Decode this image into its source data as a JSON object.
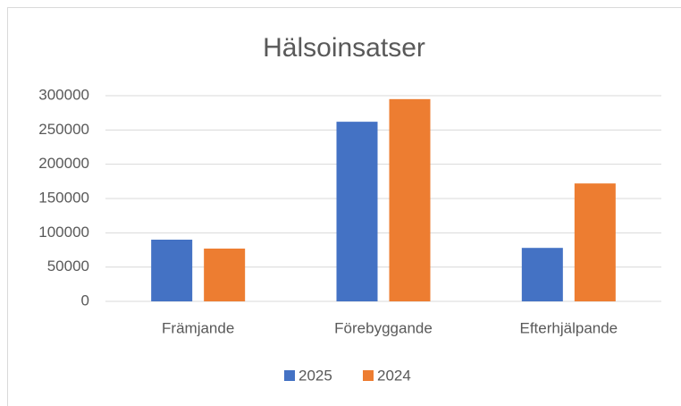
{
  "chart_data": {
    "type": "bar",
    "title": "Hälsoinsatser",
    "categories": [
      "Främjande",
      "Förebyggande",
      "Efterhjälpande"
    ],
    "series": [
      {
        "name": "2025",
        "color": "#4472c4",
        "values": [
          90000,
          262000,
          78000
        ]
      },
      {
        "name": "2024",
        "color": "#ed7d31",
        "values": [
          77000,
          295000,
          172000
        ]
      }
    ],
    "ylim": [
      0,
      300000
    ],
    "yticks": [
      0,
      50000,
      100000,
      150000,
      200000,
      250000,
      300000
    ],
    "grid": true,
    "legend": "bottom"
  }
}
